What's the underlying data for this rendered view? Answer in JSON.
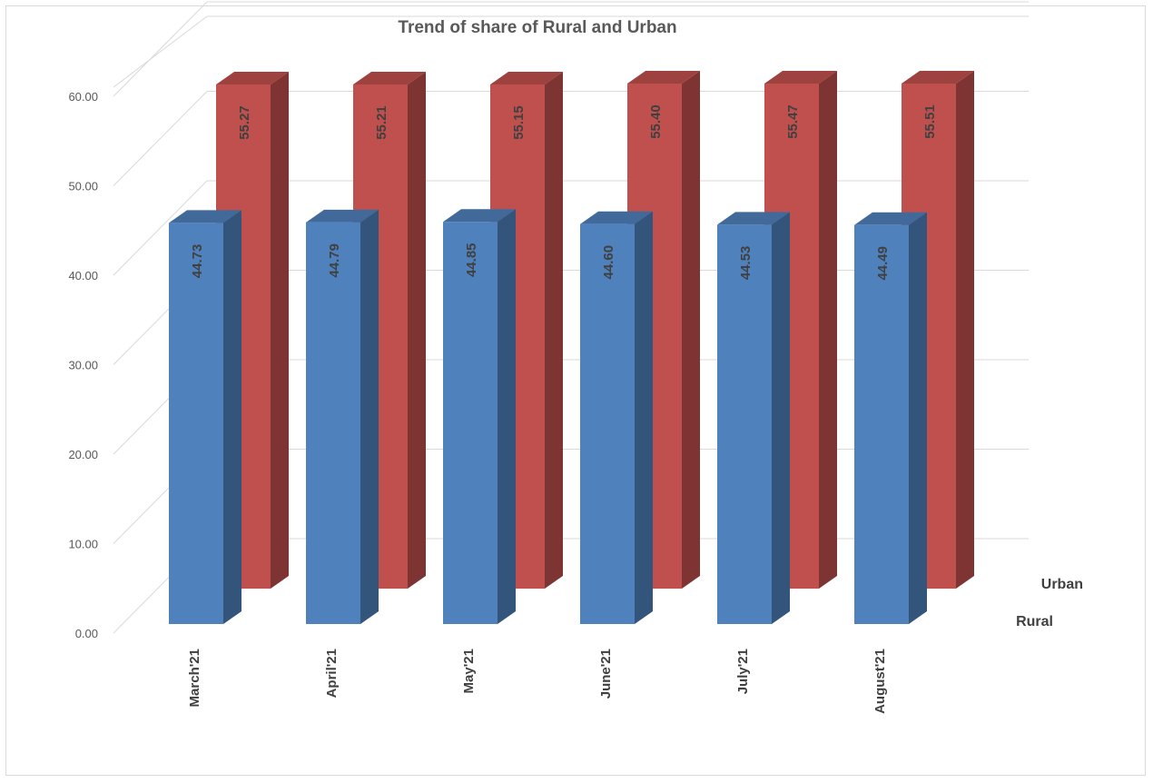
{
  "chart_data": {
    "type": "bar",
    "title": "Trend of  share of Rural and Urban",
    "categories": [
      "March'21",
      "April'21",
      "May'21",
      "June'21",
      "July'21",
      "August'21"
    ],
    "series": [
      {
        "name": "Rural",
        "values": [
          44.73,
          44.79,
          44.85,
          44.6,
          44.53,
          44.49
        ],
        "labels": [
          "44.73",
          "44.79",
          "44.85",
          "44.60",
          "44.53",
          "44.49"
        ],
        "color": "#4f81bd"
      },
      {
        "name": "Urban",
        "values": [
          55.27,
          55.21,
          55.15,
          55.4,
          55.47,
          55.51
        ],
        "labels": [
          "55.27",
          "55.21",
          "55.15",
          "55.40",
          "55.47",
          "55.51"
        ],
        "color": "#c0504d"
      }
    ],
    "yticks": [
      "0.00",
      "10.00",
      "20.00",
      "30.00",
      "40.00",
      "50.00",
      "60.00"
    ],
    "ylim": [
      0,
      60
    ],
    "grid": true,
    "style": "3d-column"
  }
}
